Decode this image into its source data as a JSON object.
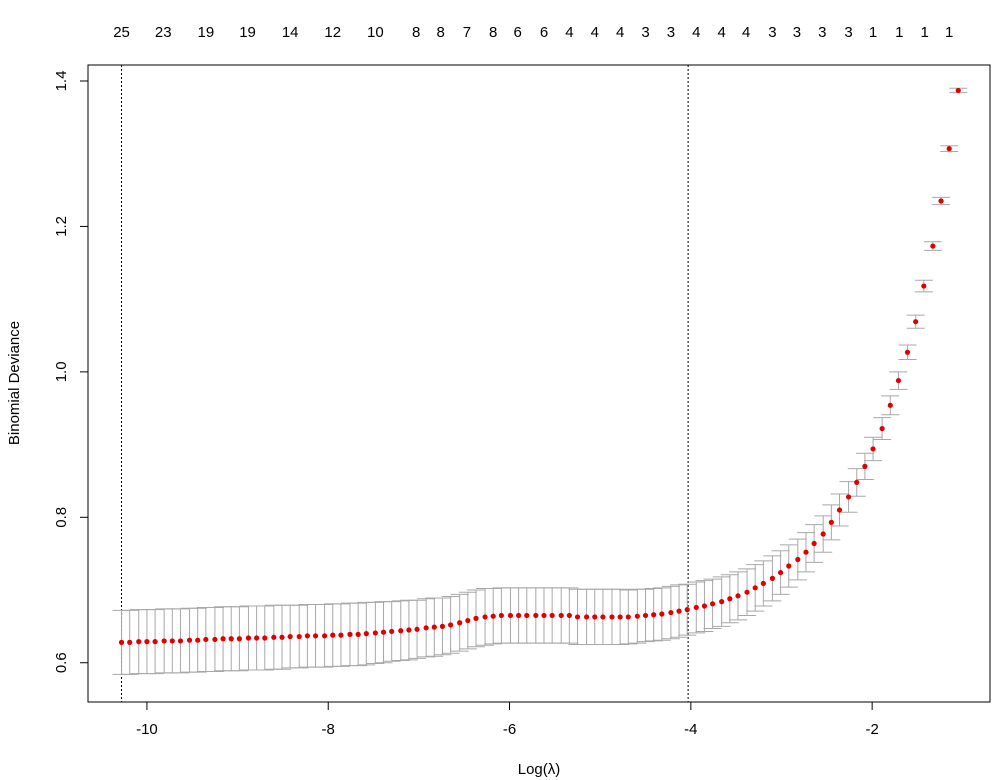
{
  "chart_data": {
    "type": "scatter",
    "x_label": "Log(λ)",
    "y_label": "Binomial Deviance",
    "xlim": [
      -10.65,
      -0.7
    ],
    "ylim": [
      0.546,
      1.422
    ],
    "xticks": [
      -10,
      -8,
      -6,
      -4,
      -2
    ],
    "yticks": [
      0.6,
      0.8,
      {
        "value": 1,
        "label": "1.0"
      },
      1.2,
      1.4
    ],
    "color": "#e00000",
    "error_color": "#a8a8a8",
    "vlines": [
      -10.28,
      -4.03
    ],
    "top_ticks": [
      {
        "value": -10.28,
        "label": "25"
      },
      {
        "value": -9.82,
        "label": "23"
      },
      {
        "value": -9.35,
        "label": "19"
      },
      {
        "value": -8.89,
        "label": "19"
      },
      {
        "value": -8.42,
        "label": "14"
      },
      {
        "value": -7.95,
        "label": "12"
      },
      {
        "value": -7.48,
        "label": "10"
      },
      {
        "value": -7.03,
        "label": "8"
      },
      {
        "value": -6.76,
        "label": "8"
      },
      {
        "value": -6.47,
        "label": "7"
      },
      {
        "value": -6.18,
        "label": "8"
      },
      {
        "value": -5.91,
        "label": "6"
      },
      {
        "value": -5.62,
        "label": "6"
      },
      {
        "value": -5.34,
        "label": "4"
      },
      {
        "value": -5.06,
        "label": "4"
      },
      {
        "value": -4.78,
        "label": "4"
      },
      {
        "value": -4.5,
        "label": "3"
      },
      {
        "value": -4.22,
        "label": "3"
      },
      {
        "value": -3.94,
        "label": "4"
      },
      {
        "value": -3.66,
        "label": "4"
      },
      {
        "value": -3.39,
        "label": "4"
      },
      {
        "value": -3.1,
        "label": "3"
      },
      {
        "value": -2.83,
        "label": "3"
      },
      {
        "value": -2.55,
        "label": "3"
      },
      {
        "value": -2.26,
        "label": "3"
      },
      {
        "value": -1.99,
        "label": "1"
      },
      {
        "value": -1.7,
        "label": "1"
      },
      {
        "value": -1.42,
        "label": "1"
      },
      {
        "value": -1.15,
        "label": "1"
      }
    ],
    "x": [
      -10.28,
      -10.19,
      -10.09,
      -10.0,
      -9.91,
      -9.81,
      -9.72,
      -9.63,
      -9.53,
      -9.44,
      -9.35,
      -9.25,
      -9.16,
      -9.07,
      -8.98,
      -8.88,
      -8.79,
      -8.7,
      -8.6,
      -8.51,
      -8.42,
      -8.32,
      -8.23,
      -8.14,
      -8.04,
      -7.95,
      -7.86,
      -7.76,
      -7.67,
      -7.58,
      -7.48,
      -7.39,
      -7.3,
      -7.2,
      -7.11,
      -7.02,
      -6.92,
      -6.83,
      -6.74,
      -6.65,
      -6.55,
      -6.46,
      -6.37,
      -6.27,
      -6.18,
      -6.09,
      -5.99,
      -5.9,
      -5.81,
      -5.71,
      -5.62,
      -5.53,
      -5.43,
      -5.34,
      -5.25,
      -5.15,
      -5.06,
      -4.97,
      -4.87,
      -4.78,
      -4.69,
      -4.59,
      -4.5,
      -4.41,
      -4.32,
      -4.22,
      -4.13,
      -4.04,
      -3.94,
      -3.85,
      -3.76,
      -3.66,
      -3.57,
      -3.48,
      -3.38,
      -3.29,
      -3.2,
      -3.1,
      -3.01,
      -2.92,
      -2.82,
      -2.73,
      -2.64,
      -2.54,
      -2.45,
      -2.36,
      -2.26,
      -2.17,
      -2.08,
      -1.99,
      -1.89,
      -1.8,
      -1.71,
      -1.61,
      -1.52,
      -1.43,
      -1.33,
      -1.24,
      -1.15,
      -1.05
    ],
    "values": [
      0.628,
      0.628,
      0.629,
      0.629,
      0.629,
      0.63,
      0.63,
      0.63,
      0.631,
      0.631,
      0.632,
      0.632,
      0.633,
      0.633,
      0.633,
      0.634,
      0.634,
      0.634,
      0.635,
      0.635,
      0.636,
      0.636,
      0.637,
      0.637,
      0.637,
      0.638,
      0.638,
      0.639,
      0.639,
      0.64,
      0.641,
      0.642,
      0.643,
      0.644,
      0.645,
      0.646,
      0.648,
      0.649,
      0.65,
      0.652,
      0.655,
      0.658,
      0.661,
      0.663,
      0.664,
      0.665,
      0.665,
      0.665,
      0.665,
      0.665,
      0.665,
      0.665,
      0.665,
      0.665,
      0.663,
      0.663,
      0.663,
      0.663,
      0.663,
      0.663,
      0.663,
      0.664,
      0.665,
      0.666,
      0.667,
      0.669,
      0.671,
      0.673,
      0.676,
      0.678,
      0.681,
      0.684,
      0.688,
      0.692,
      0.697,
      0.703,
      0.709,
      0.716,
      0.724,
      0.733,
      0.742,
      0.752,
      0.764,
      0.777,
      0.793,
      0.81,
      0.828,
      0.848,
      0.87,
      0.894,
      0.922,
      0.954,
      0.988,
      1.027,
      1.069,
      1.118,
      1.173,
      1.235,
      1.307,
      1.387
    ],
    "errors": [
      0.044,
      0.044,
      0.044,
      0.044,
      0.044,
      0.044,
      0.044,
      0.044,
      0.044,
      0.044,
      0.044,
      0.044,
      0.044,
      0.044,
      0.044,
      0.044,
      0.044,
      0.044,
      0.044,
      0.044,
      0.043,
      0.043,
      0.043,
      0.043,
      0.043,
      0.043,
      0.043,
      0.043,
      0.043,
      0.043,
      0.042,
      0.042,
      0.041,
      0.041,
      0.041,
      0.04,
      0.04,
      0.04,
      0.039,
      0.039,
      0.039,
      0.039,
      0.039,
      0.039,
      0.038,
      0.038,
      0.038,
      0.038,
      0.038,
      0.038,
      0.038,
      0.038,
      0.038,
      0.038,
      0.038,
      0.038,
      0.038,
      0.038,
      0.038,
      0.038,
      0.037,
      0.037,
      0.036,
      0.036,
      0.036,
      0.036,
      0.036,
      0.035,
      0.035,
      0.035,
      0.034,
      0.034,
      0.033,
      0.033,
      0.032,
      0.032,
      0.031,
      0.031,
      0.03,
      0.029,
      0.028,
      0.027,
      0.026,
      0.025,
      0.024,
      0.022,
      0.021,
      0.019,
      0.018,
      0.016,
      0.015,
      0.013,
      0.012,
      0.01,
      0.009,
      0.008,
      0.006,
      0.005,
      0.004,
      0.003
    ]
  }
}
